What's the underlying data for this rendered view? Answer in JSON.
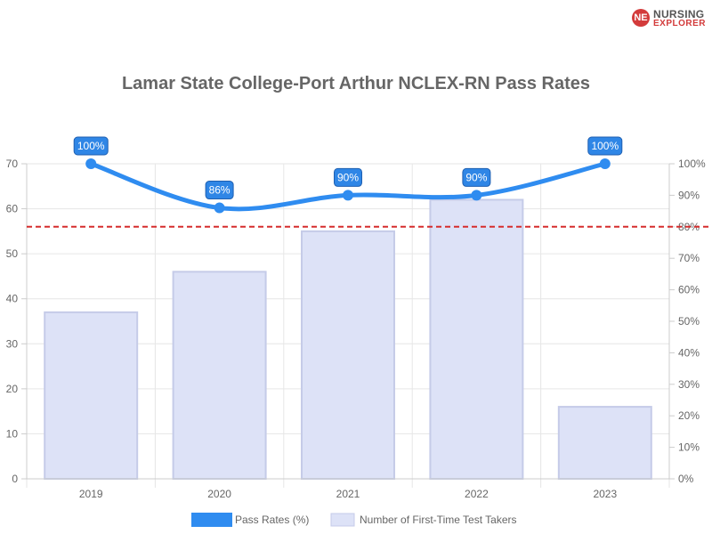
{
  "logo": {
    "mark": "NE",
    "line1": "NURSING",
    "line2": "EXPLORER"
  },
  "chart_data": {
    "type": "bar",
    "title": "Lamar State College-Port Arthur NCLEX-RN Pass Rates",
    "categories": [
      "2019",
      "2020",
      "2021",
      "2022",
      "2023"
    ],
    "series": [
      {
        "name": "Pass Rates (%)",
        "type": "line",
        "axis": "right",
        "values": [
          100,
          86,
          90,
          90,
          100
        ],
        "data_labels": [
          "100%",
          "86%",
          "90%",
          "90%",
          "100%"
        ],
        "missing_years": [
          "2023"
        ],
        "color": "#2f8cf0"
      },
      {
        "name": "Number of First-Time Test Takers",
        "type": "bar",
        "axis": "left",
        "values": [
          37,
          46,
          55,
          62,
          16
        ],
        "color": "#dde2f7"
      }
    ],
    "y_left": {
      "ylim": [
        0,
        70
      ],
      "ticks": [
        "0",
        "10",
        "20",
        "30",
        "40",
        "50",
        "60",
        "70"
      ]
    },
    "y_right": {
      "ylim": [
        0,
        100
      ],
      "ticks": [
        "0%",
        "10%",
        "20%",
        "30%",
        "40%",
        "50%",
        "60%",
        "70%",
        "80%",
        "90%",
        "100%"
      ]
    },
    "reference_line": {
      "value": 80,
      "axis": "right",
      "color": "#d62d2d",
      "style": "dashed"
    },
    "legend": {
      "placement": "bottom"
    },
    "grid": true
  }
}
